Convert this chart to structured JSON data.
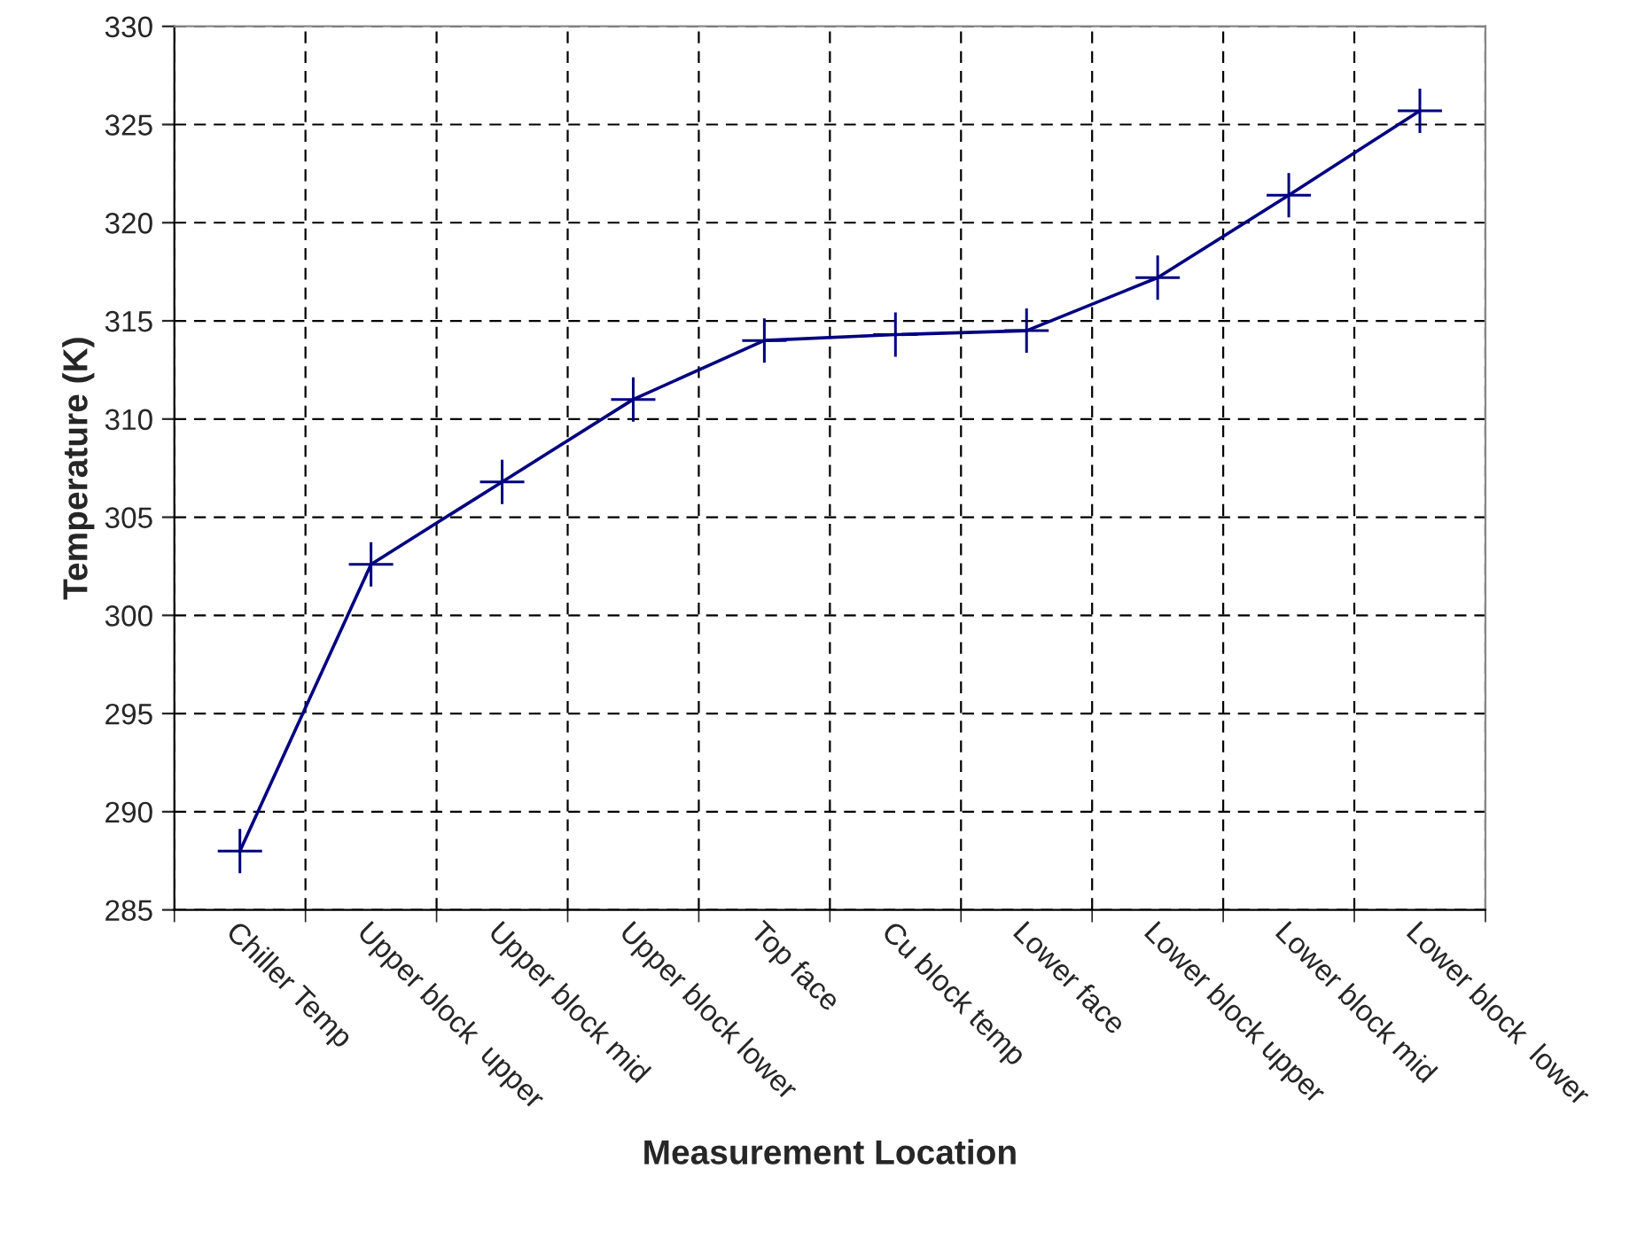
{
  "chart_data": {
    "type": "line",
    "xlabel": "Measurement Location",
    "ylabel": "Temperature (K)",
    "categories": [
      "Chiller Temp",
      "Upper block  upper",
      "Upper block mid",
      "Upper block lower",
      "Top face",
      "Cu block temp",
      "Lower face",
      "Lower block upper",
      "Lower block mid",
      "Lower block  lower"
    ],
    "series": [
      {
        "color": "#000080",
        "values": [
          288.0,
          302.6,
          306.8,
          311.0,
          314.0,
          314.3,
          314.5,
          317.2,
          321.4,
          325.7
        ]
      }
    ],
    "ylim": [
      285,
      330
    ],
    "yticks": [
      285,
      290,
      295,
      300,
      305,
      310,
      315,
      320,
      325,
      330
    ],
    "grid": true,
    "marker": "cross",
    "line_style": "solid",
    "legend": false
  }
}
